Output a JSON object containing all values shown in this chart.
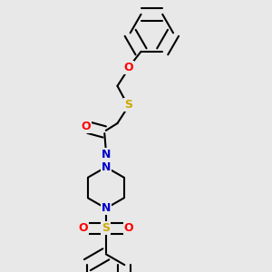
{
  "bg_color": "#e8e8e8",
  "bond_color": "#000000",
  "atom_colors": {
    "O": "#ff0000",
    "N": "#0000cc",
    "S": "#ccaa00",
    "C": "#000000"
  },
  "line_width": 1.5,
  "font_size_atom": 9,
  "r_hex": 0.075
}
